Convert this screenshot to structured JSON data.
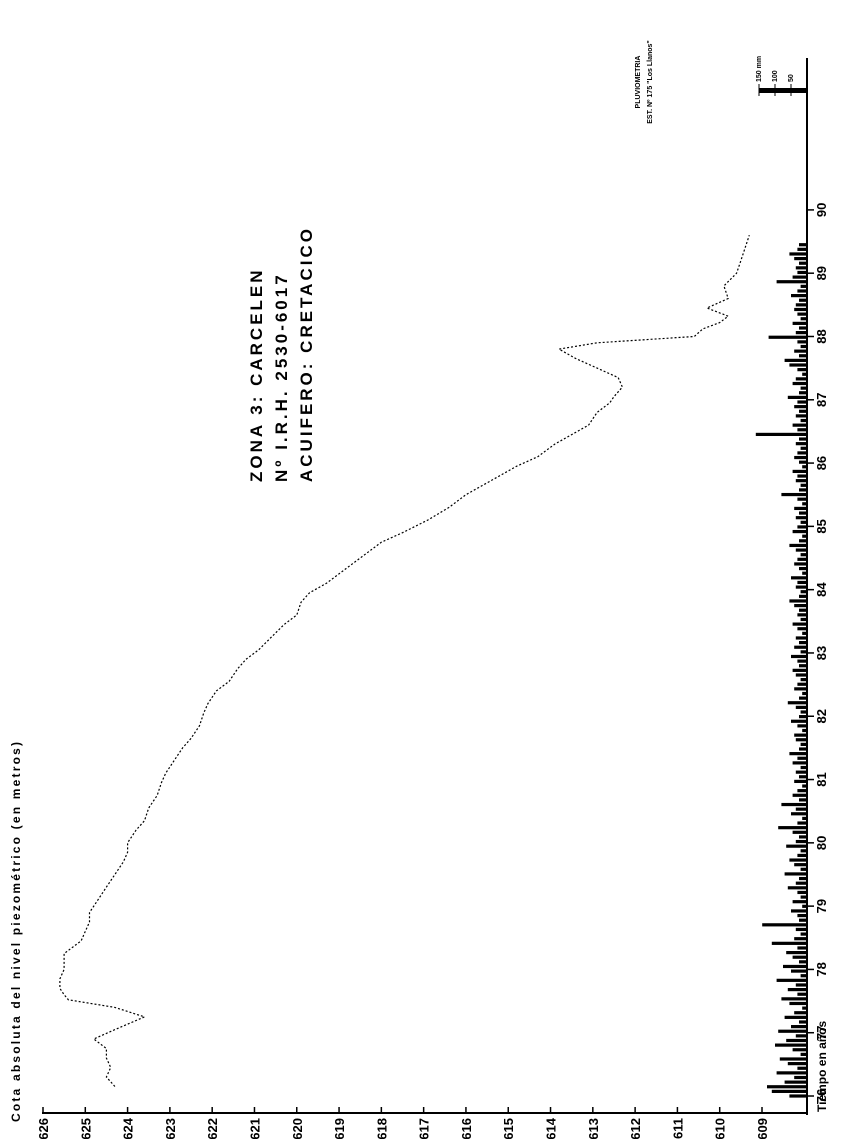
{
  "chart_data": {
    "type": "line",
    "orientation": "rotated-90-clockwise",
    "xlabel": "Tiempo en años",
    "ylabel": "Cota absoluta del nivel piezométrico (en metros)",
    "x_ticks": [
      "76",
      "77",
      "78",
      "79",
      "80",
      "81",
      "82",
      "83",
      "84",
      "85",
      "86",
      "87",
      "88",
      "89",
      "90"
    ],
    "x_range": [
      1975.7,
      1992.4
    ],
    "y_ticks": [
      626,
      625,
      624,
      623,
      622,
      621,
      620,
      619,
      618,
      617,
      616,
      615,
      614,
      613,
      612,
      611,
      610,
      609
    ],
    "y_range": [
      608,
      626
    ],
    "info_lines": [
      "ZONA 3: CARCELEN",
      "Nº I.R.H. 2530-6017",
      "ACUIFERO: CRETACICO"
    ],
    "series": [
      {
        "x": [
          1976.15,
          1976.3,
          1976.45,
          1976.6,
          1976.75,
          1976.9,
          1977.05,
          1977.25,
          1977.4,
          1977.52,
          1977.6,
          1977.7,
          1977.85,
          1978.0,
          1978.25,
          1978.45,
          1978.6,
          1978.75,
          1978.9,
          1979.1,
          1979.3,
          1979.5,
          1979.7,
          1979.85,
          1980.0,
          1980.2,
          1980.35,
          1980.55,
          1980.75,
          1980.95,
          1981.1,
          1981.3,
          1981.5,
          1981.65,
          1981.85,
          1982.05,
          1982.2,
          1982.4,
          1982.55,
          1982.75,
          1982.9,
          1983.05,
          1983.25,
          1983.45,
          1983.6,
          1983.8,
          1983.95,
          1984.1,
          1984.35,
          1984.6,
          1984.75,
          1984.9,
          1985.1,
          1985.3,
          1985.5,
          1985.65,
          1985.8,
          1985.95,
          1986.1,
          1986.3,
          1986.45,
          1986.6,
          1986.8,
          1986.95,
          1987.05,
          1987.2,
          1987.35,
          1987.5,
          1987.65,
          1987.8,
          1987.9,
          1988.0,
          1988.12,
          1988.22,
          1988.32,
          1988.45,
          1988.6,
          1988.8,
          1989.0,
          1989.2,
          1989.4,
          1989.6
        ],
        "y": [
          624.3,
          624.5,
          624.4,
          624.5,
          624.5,
          624.8,
          624.3,
          623.6,
          624.3,
          625.4,
          625.5,
          625.6,
          625.6,
          625.5,
          625.5,
          625.1,
          625.0,
          624.9,
          624.9,
          624.7,
          624.5,
          624.3,
          624.1,
          624.0,
          624.0,
          623.8,
          623.6,
          623.5,
          623.3,
          623.2,
          623.1,
          622.9,
          622.7,
          622.5,
          622.3,
          622.2,
          622.1,
          621.9,
          621.6,
          621.4,
          621.2,
          620.9,
          620.6,
          620.3,
          620.0,
          619.9,
          619.7,
          619.3,
          618.8,
          618.3,
          618.0,
          617.5,
          616.9,
          616.4,
          616.0,
          615.6,
          615.2,
          614.8,
          614.3,
          613.9,
          613.5,
          613.1,
          612.9,
          612.6,
          612.5,
          612.3,
          612.4,
          612.9,
          613.4,
          613.8,
          612.9,
          610.6,
          610.4,
          610.0,
          609.8,
          610.3,
          609.8,
          609.9,
          609.6,
          609.5,
          609.4,
          609.3
        ]
      }
    ],
    "rainfall": {
      "title_lines": [
        "PLUVIOMETRIA",
        "EST. Nº 175 \"Los Llanos\""
      ],
      "scale_labels": [
        "150 mm",
        "100",
        "50"
      ],
      "scale_values": [
        150,
        100,
        50
      ],
      "max_mm": 150,
      "monthly_mm": [
        55,
        110,
        125,
        70,
        40,
        95,
        30,
        60,
        85,
        20,
        45,
        100,
        65,
        35,
        90,
        50,
        25,
        70,
        40,
        15,
        55,
        80,
        30,
        60,
        35,
        95,
        20,
        50,
        75,
        25,
        45,
        65,
        30,
        110,
        40,
        20,
        35,
        140,
        25,
        30,
        50,
        15,
        45,
        20,
        30,
        60,
        35,
        25,
        70,
        20,
        40,
        55,
        30,
        20,
        65,
        35,
        25,
        45,
        90,
        30,
        15,
        50,
        35,
        80,
        25,
        45,
        30,
        15,
        40,
        25,
        35,
        20,
        45,
        30,
        55,
        25,
        20,
        35,
        40,
        15,
        30,
        50,
        25,
        20,
        35,
        60,
        25,
        15,
        40,
        30,
        20,
        35,
        45,
        25,
        30,
        50,
        20,
        40,
        25,
        35,
        15,
        30,
        45,
        20,
        30,
        25,
        40,
        55,
        25,
        20,
        35,
        30,
        50,
        15,
        25,
        40,
        30,
        20,
        35,
        55,
        25,
        15,
        45,
        30,
        20,
        35,
        25,
        40,
        15,
        30,
        80,
        25,
        20,
        35,
        30,
        45,
        15,
        25,
        40,
        30,
        20,
        35,
        25,
        160,
        30,
        45,
        20,
        35,
        25,
        40,
        30,
        60,
        25,
        20,
        45,
        35,
        15,
        30,
        55,
        70,
        25,
        40,
        20,
        30,
        120,
        35,
        25,
        45,
        20,
        30,
        40,
        35,
        25,
        50,
        30,
        20,
        95,
        45,
        30,
        35,
        25,
        40,
        55,
        30,
        25
      ]
    }
  }
}
